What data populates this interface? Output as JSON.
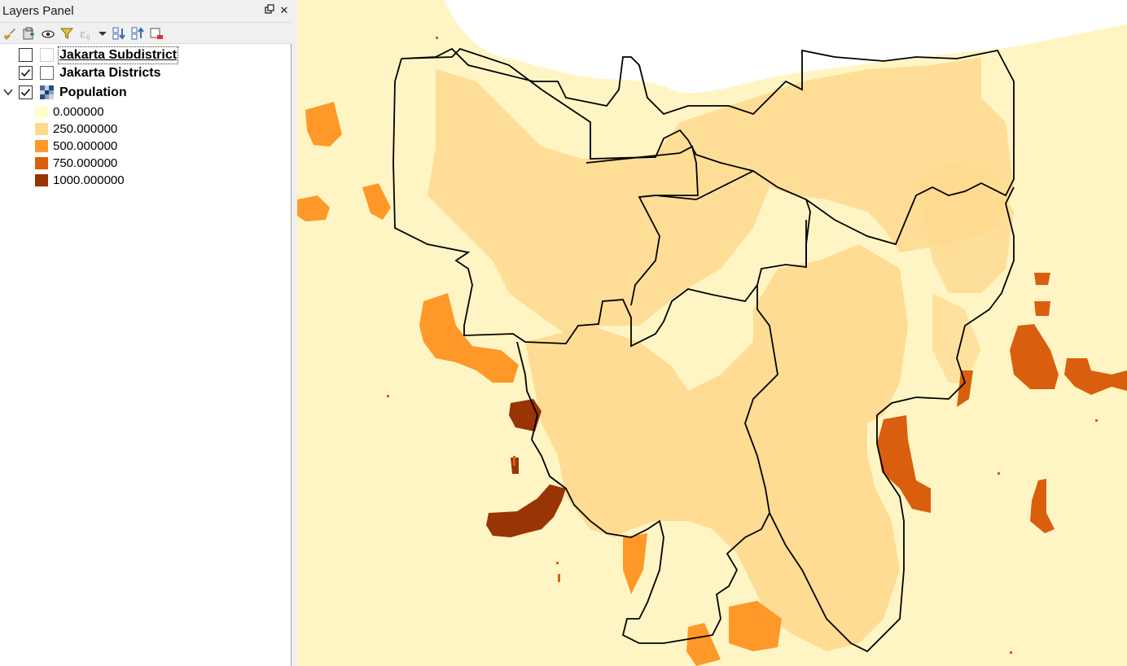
{
  "panel": {
    "title": "Layers Panel",
    "float_icon": "float-panel-icon",
    "close_icon": "close-icon",
    "toolbar": [
      {
        "icon": "style-brush-icon"
      },
      {
        "icon": "add-group-icon"
      },
      {
        "icon": "manage-visibility-icon"
      },
      {
        "icon": "filter-legend-icon"
      },
      {
        "icon": "filter-expression-icon"
      },
      {
        "icon": "dropdown-arrow-icon"
      },
      {
        "icon": "expand-all-icon"
      },
      {
        "icon": "collapse-all-icon"
      },
      {
        "icon": "remove-layer-icon"
      }
    ]
  },
  "layers": [
    {
      "name": "Jakarta Subdistrict",
      "checked": false,
      "selected": true
    },
    {
      "name": "Jakarta Districts",
      "checked": true,
      "selected": false
    },
    {
      "name": "Population",
      "checked": true,
      "expanded": true
    }
  ],
  "legend": [
    {
      "label": "0.000000",
      "color": "#ffffcc"
    },
    {
      "label": "250.000000",
      "color": "#fed98e"
    },
    {
      "label": "500.000000",
      "color": "#fe9929"
    },
    {
      "label": "750.000000",
      "color": "#d95f0e"
    },
    {
      "label": "1000.000000",
      "color": "#993404"
    }
  ],
  "map": {
    "background_color": "#fff5c4",
    "sea_color": "#ffffff",
    "district_outline_color": "#000000"
  }
}
